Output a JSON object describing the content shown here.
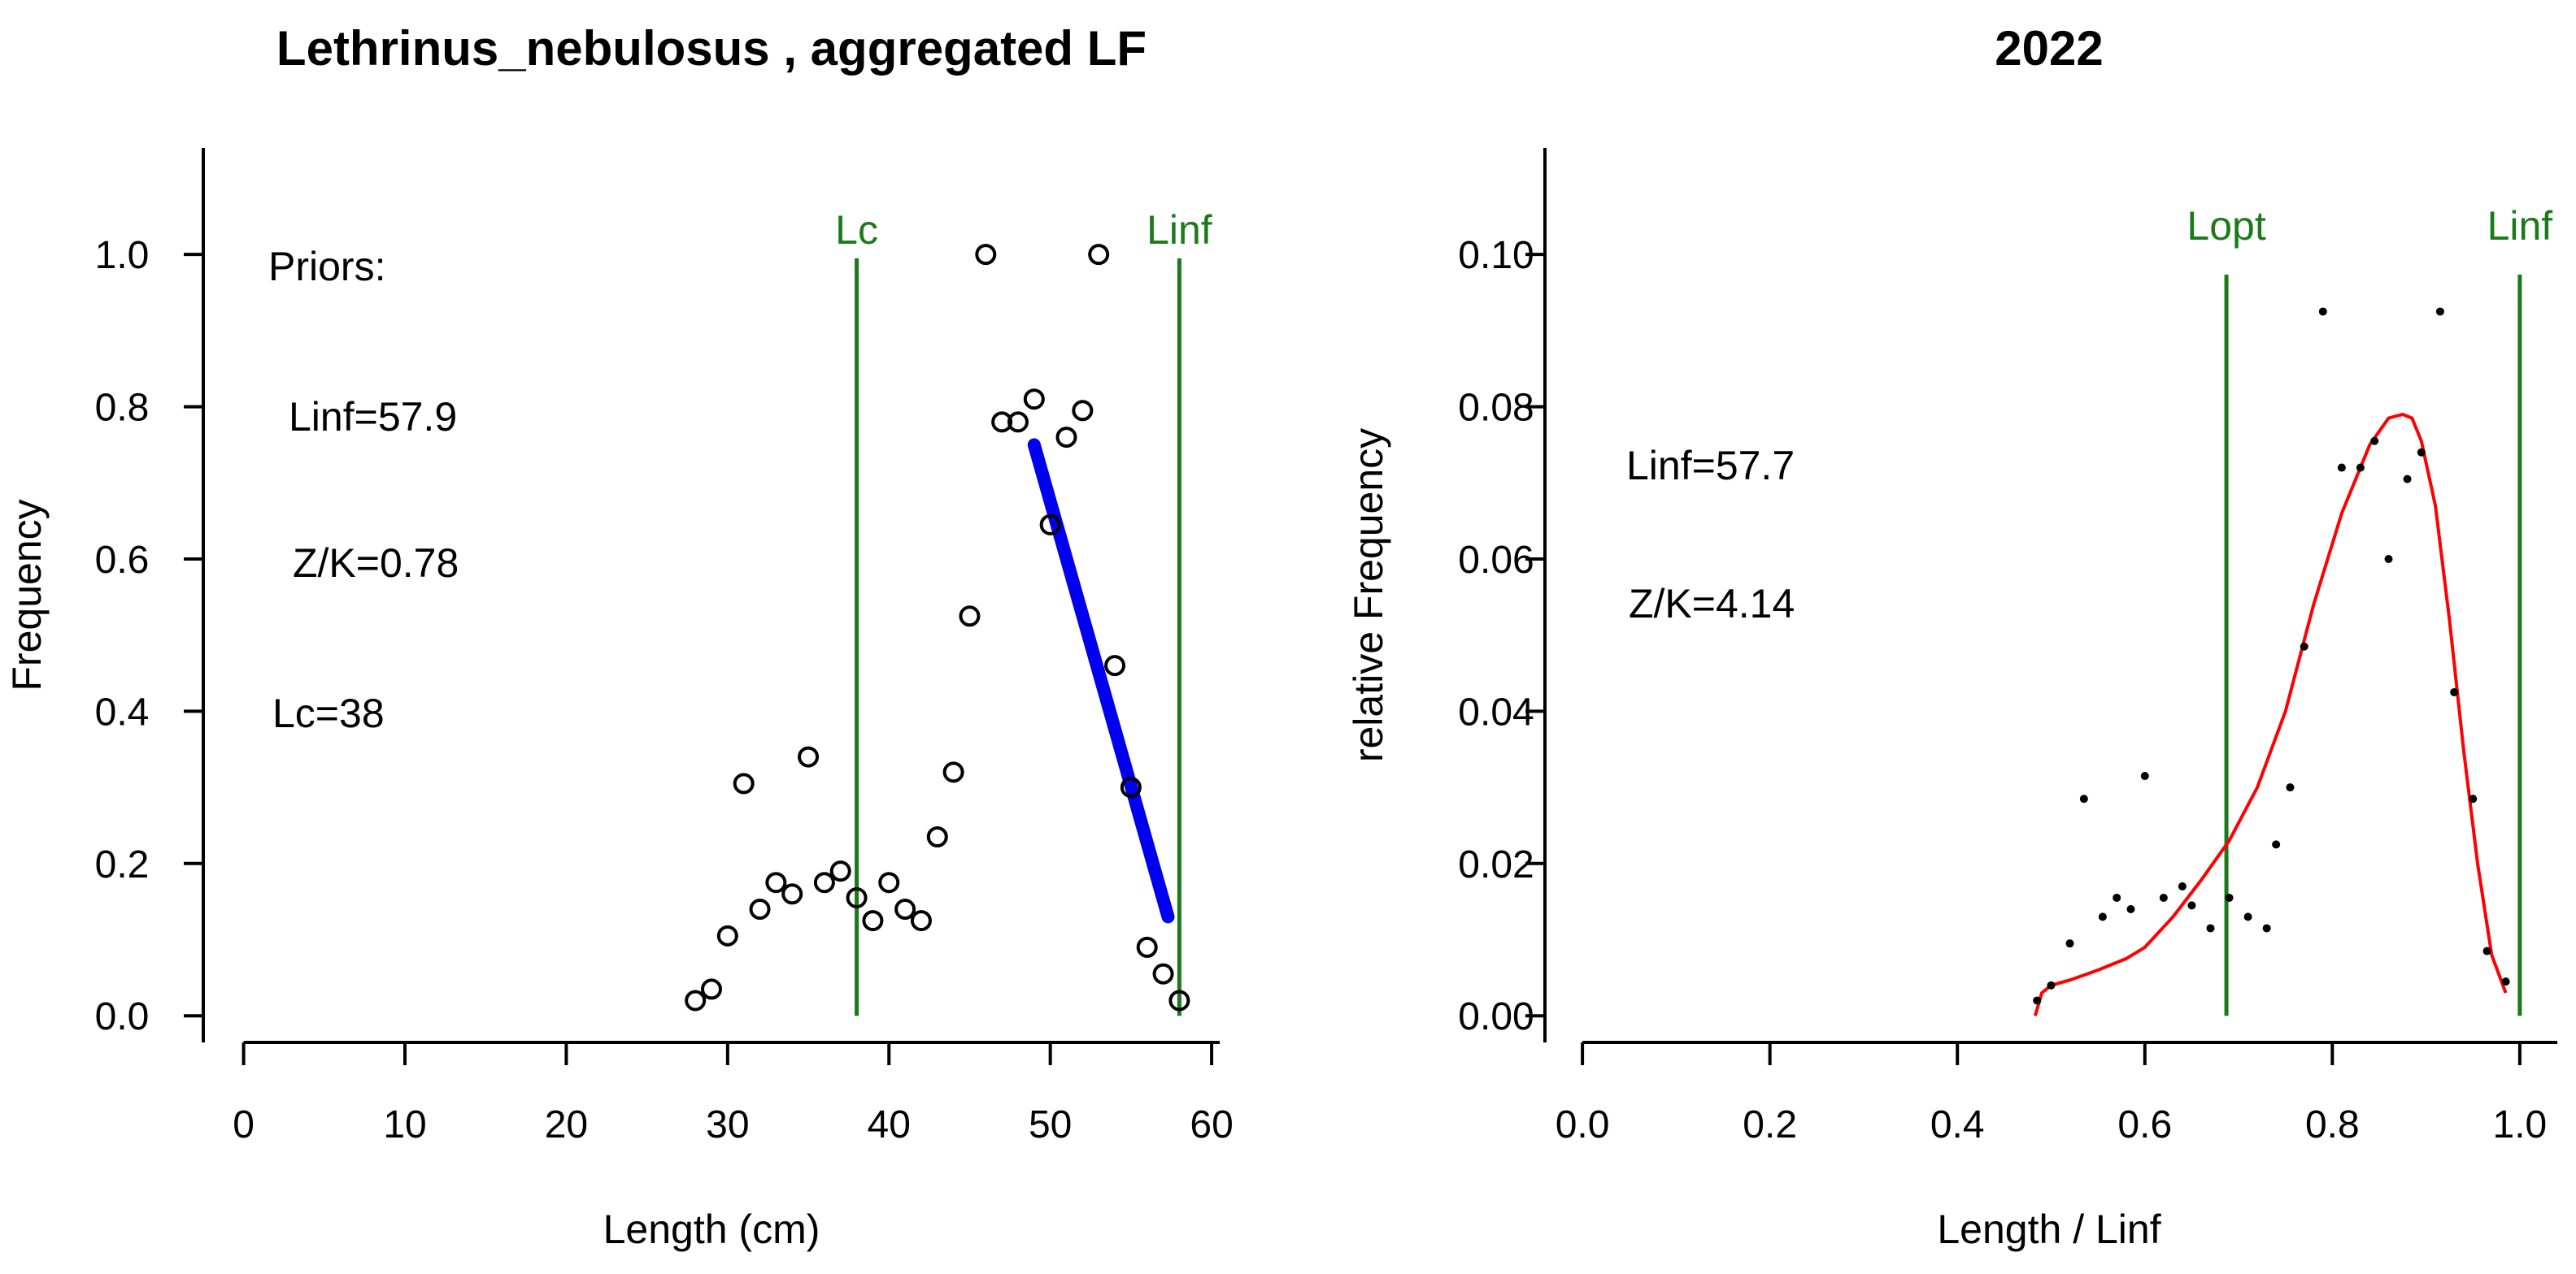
{
  "chart_data": [
    {
      "type": "scatter",
      "title": "Lethrinus_nebulosus , aggregated LF",
      "xlabel": "Length (cm)",
      "ylabel": "Frequency",
      "xlim": [
        -2.5,
        60.5
      ],
      "ylim": [
        -0.035,
        1.14
      ],
      "xticks": [
        "0",
        "10",
        "20",
        "30",
        "40",
        "50",
        "60"
      ],
      "yticks": [
        "0.0",
        "0.2",
        "0.4",
        "0.6",
        "0.8",
        "1.0"
      ],
      "grid": false,
      "annotations": [
        "Priors:",
        "Linf=57.9",
        "Z/K=0.78",
        "Lc=38"
      ],
      "vlines": [
        {
          "label": "Lc",
          "x": 38,
          "color": "#1a7a1a"
        },
        {
          "label": "Linf",
          "x": 58,
          "color": "#1a7a1a"
        }
      ],
      "points": {
        "x": [
          28,
          29,
          30,
          31,
          32,
          33,
          34,
          35,
          36,
          37,
          38,
          39,
          40,
          41,
          42,
          43,
          44,
          45,
          46,
          47,
          48,
          49,
          50,
          51,
          52,
          53,
          54,
          55,
          56,
          57,
          58
        ],
        "y": [
          0.02,
          0.035,
          0.105,
          0.305,
          0.14,
          0.175,
          0.16,
          0.34,
          0.175,
          0.19,
          0.155,
          0.125,
          0.175,
          0.14,
          0.125,
          0.235,
          0.32,
          0.525,
          1.0,
          0.78,
          0.78,
          0.81,
          0.645,
          0.76,
          0.795,
          1.0,
          0.46,
          0.3,
          0.09,
          0.055,
          0.02
        ]
      },
      "fit_line": {
        "color": "#0000ee",
        "x": [
          49,
          57.3
        ],
        "y": [
          0.75,
          0.13
        ]
      }
    },
    {
      "type": "line",
      "title": "2022",
      "xlabel": "Length / Linf",
      "ylabel": "relative Frequency",
      "xlim": [
        -0.04,
        1.04
      ],
      "ylim": [
        -0.0035,
        0.114
      ],
      "xticks": [
        "0.0",
        "0.2",
        "0.4",
        "0.6",
        "0.8",
        "1.0"
      ],
      "yticks": [
        "0.00",
        "0.02",
        "0.04",
        "0.06",
        "0.08",
        "0.10"
      ],
      "grid": false,
      "annotations": [
        "Linf=57.7",
        "Z/K=4.14"
      ],
      "vlines": [
        {
          "label": "Lopt",
          "x": 0.687,
          "color": "#1a7a1a"
        },
        {
          "label": "Linf",
          "x": 1.0,
          "color": "#1a7a1a"
        }
      ],
      "points": {
        "x": [
          0.485,
          0.5,
          0.52,
          0.535,
          0.555,
          0.57,
          0.585,
          0.6,
          0.62,
          0.64,
          0.65,
          0.67,
          0.69,
          0.71,
          0.73,
          0.74,
          0.755,
          0.77,
          0.79,
          0.81,
          0.83,
          0.845,
          0.86,
          0.88,
          0.895,
          0.915,
          0.93,
          0.95,
          0.965,
          0.985
        ],
        "y": [
          0.002,
          0.004,
          0.0095,
          0.0285,
          0.013,
          0.0155,
          0.014,
          0.0315,
          0.0155,
          0.017,
          0.0145,
          0.0115,
          0.0155,
          0.013,
          0.0115,
          0.0225,
          0.03,
          0.0485,
          0.0925,
          0.072,
          0.072,
          0.0755,
          0.06,
          0.0705,
          0.074,
          0.0925,
          0.0425,
          0.0285,
          0.0085,
          0.0045
        ]
      },
      "curve": {
        "color": "#ff0000",
        "x": [
          0.483,
          0.49,
          0.5,
          0.52,
          0.55,
          0.58,
          0.6,
          0.63,
          0.66,
          0.69,
          0.72,
          0.75,
          0.78,
          0.81,
          0.84,
          0.86,
          0.875,
          0.885,
          0.895,
          0.91,
          0.925,
          0.94,
          0.955,
          0.97,
          0.985
        ],
        "y": [
          0.0,
          0.003,
          0.004,
          0.0047,
          0.006,
          0.0075,
          0.009,
          0.013,
          0.0178,
          0.023,
          0.03,
          0.04,
          0.054,
          0.066,
          0.075,
          0.0785,
          0.079,
          0.0785,
          0.0755,
          0.067,
          0.052,
          0.035,
          0.02,
          0.008,
          0.003
        ]
      }
    }
  ]
}
